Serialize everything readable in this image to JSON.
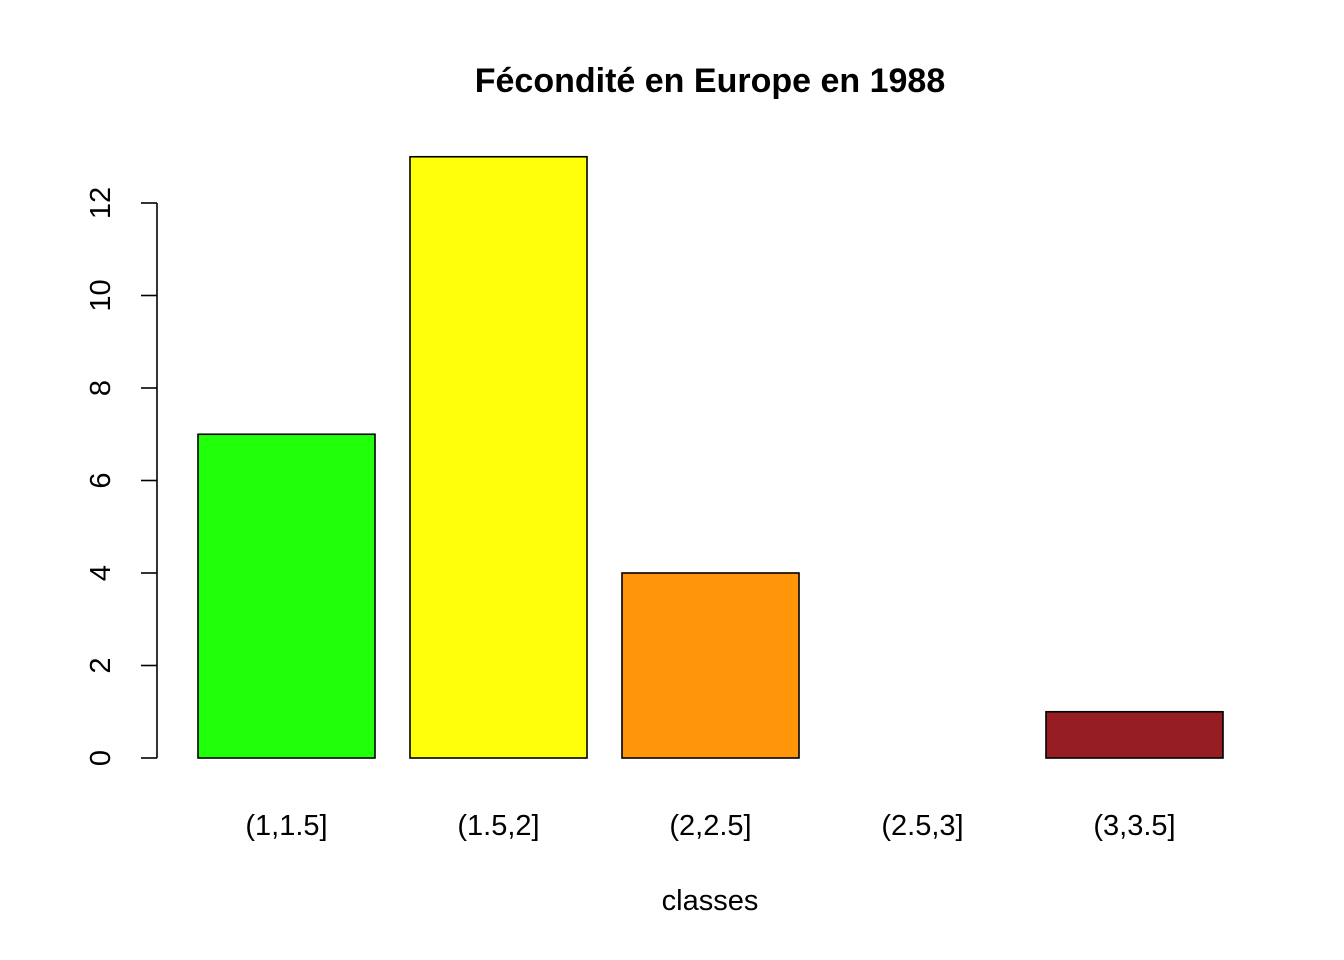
{
  "chart_data": {
    "type": "bar",
    "title": "Fécondité en Europe en 1988",
    "xlabel": "classes",
    "ylabel": "",
    "categories": [
      "(1,1.5]",
      "(1.5,2]",
      "(2,2.5]",
      "(2.5,3]",
      "(3,3.5]"
    ],
    "values": [
      7,
      13,
      4,
      0,
      1
    ],
    "colors": [
      "#22ff0a",
      "#ffff0a",
      "#ff960a",
      "#ff960a",
      "#961e23"
    ],
    "bar_border_color": "#000000",
    "ylim": [
      0,
      13
    ],
    "yticks": [
      0,
      2,
      4,
      6,
      8,
      10,
      12
    ],
    "ytick_labels": [
      "0",
      "2",
      "4",
      "6",
      "8",
      "10",
      "12"
    ],
    "grid": false,
    "legend": "none"
  }
}
